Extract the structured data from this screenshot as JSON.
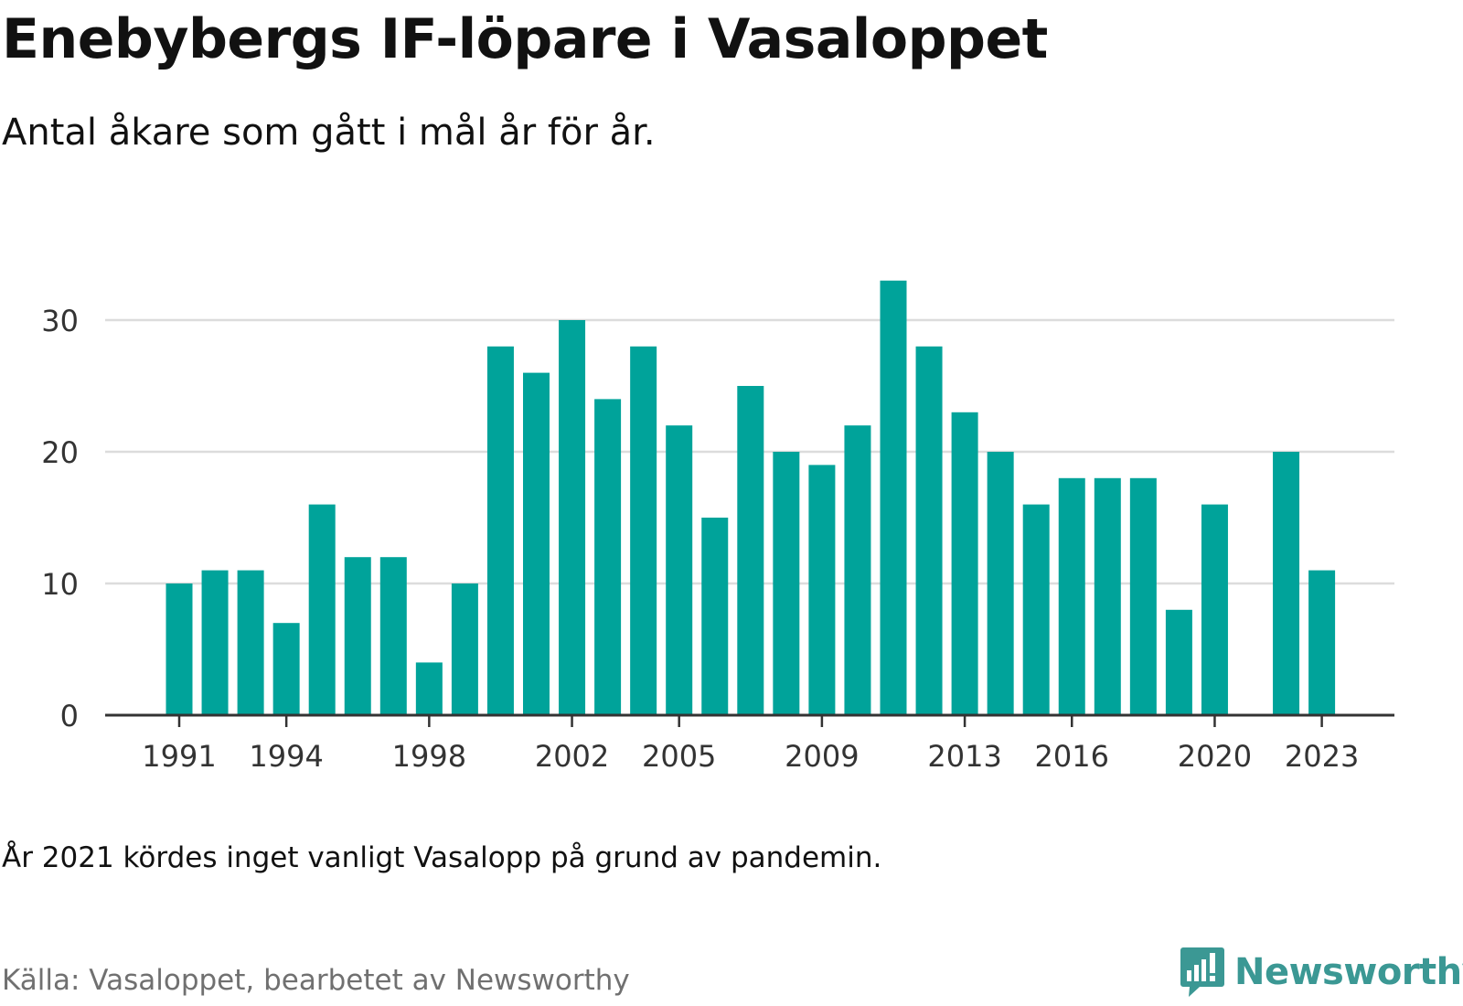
{
  "header": {
    "title": "Enebybergs IF-löpare i Vasaloppet",
    "subtitle": "Antal åkare som gått i mål år för år."
  },
  "footer": {
    "note": "År 2021 kördes inget vanligt Vasalopp på grund av pandemin.",
    "source": "Källa: Vasaloppet, bearbetet av Newsworthy",
    "brand": "Newsworthy",
    "brand_icon": "newsworthy-logo-icon"
  },
  "colors": {
    "bar": "#00a39a",
    "grid": "#dcdcdc",
    "axis": "#333333",
    "tick_label": "#333333",
    "brand": "#3b9894"
  },
  "chart_data": {
    "type": "bar",
    "title": "Enebybergs IF-löpare i Vasaloppet",
    "subtitle": "Antal åkare som gått i mål år för år.",
    "xlabel": "",
    "ylabel": "",
    "categories": [
      1991,
      1992,
      1993,
      1994,
      1995,
      1996,
      1997,
      1998,
      1999,
      2000,
      2001,
      2002,
      2003,
      2004,
      2005,
      2006,
      2007,
      2008,
      2009,
      2010,
      2011,
      2012,
      2013,
      2014,
      2015,
      2016,
      2017,
      2018,
      2019,
      2020,
      2021,
      2022,
      2023
    ],
    "values": [
      10,
      11,
      11,
      7,
      16,
      12,
      12,
      4,
      10,
      28,
      26,
      30,
      24,
      28,
      22,
      15,
      25,
      20,
      19,
      22,
      33,
      28,
      23,
      20,
      16,
      18,
      18,
      18,
      8,
      16,
      null,
      20,
      11
    ],
    "x_tick_labels": [
      "1991",
      "1994",
      "1998",
      "2002",
      "2005",
      "2009",
      "2013",
      "2016",
      "2020",
      "2023"
    ],
    "y_ticks": [
      0,
      10,
      20,
      30
    ],
    "ylim": [
      0,
      35
    ],
    "grid": "horizontal",
    "legend": "none"
  }
}
